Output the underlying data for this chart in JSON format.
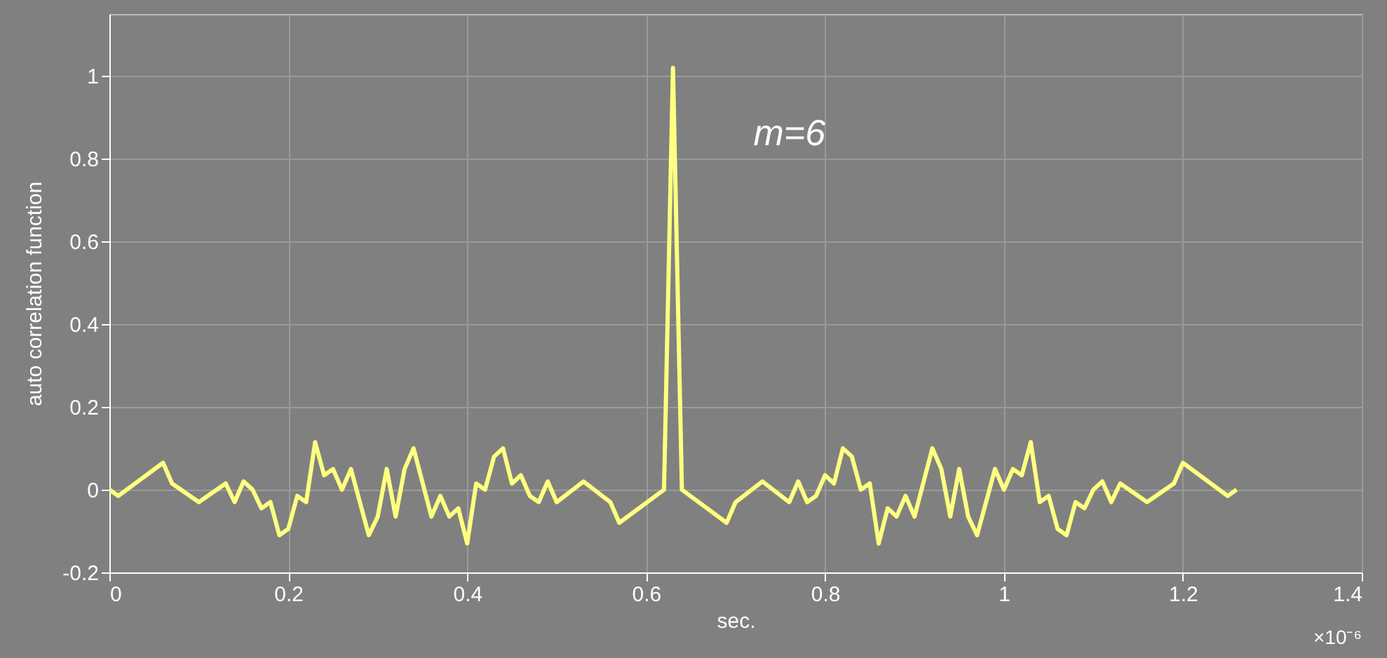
{
  "chart_data": {
    "type": "line",
    "xlabel": "sec.",
    "ylabel": "auto correlation function",
    "x": [
      0,
      0.01,
      0.06,
      0.07,
      0.1,
      0.13,
      0.14,
      0.15,
      0.16,
      0.17,
      0.18,
      0.19,
      0.2,
      0.21,
      0.22,
      0.23,
      0.24,
      0.25,
      0.26,
      0.27,
      0.29,
      0.3,
      0.31,
      0.32,
      0.33,
      0.34,
      0.36,
      0.37,
      0.38,
      0.39,
      0.4,
      0.41,
      0.42,
      0.43,
      0.44,
      0.45,
      0.46,
      0.47,
      0.48,
      0.49,
      0.5,
      0.53,
      0.56,
      0.57,
      0.62,
      0.63,
      0.64,
      0.69,
      0.7,
      0.73,
      0.76,
      0.77,
      0.78,
      0.79,
      0.8,
      0.81,
      0.82,
      0.83,
      0.84,
      0.85,
      0.86,
      0.87,
      0.88,
      0.89,
      0.9,
      0.92,
      0.93,
      0.94,
      0.95,
      0.96,
      0.97,
      0.99,
      1.0,
      1.01,
      1.02,
      1.03,
      1.04,
      1.05,
      1.06,
      1.07,
      1.08,
      1.09,
      1.1,
      1.11,
      1.12,
      1.13,
      1.16,
      1.19,
      1.2,
      1.25,
      1.26
    ],
    "series": [
      {
        "color": "#ffff80",
        "values": [
          0,
          -0.015,
          0.065,
          0.015,
          -0.03,
          0.015,
          -0.03,
          0.02,
          0,
          -0.045,
          -0.03,
          -0.11,
          -0.095,
          -0.015,
          -0.03,
          0.115,
          0.035,
          0.05,
          0,
          0.05,
          -0.11,
          -0.065,
          0.05,
          -0.065,
          0.05,
          0.1,
          -0.065,
          -0.015,
          -0.065,
          -0.045,
          -0.13,
          0.015,
          0,
          0.08,
          0.1,
          0.015,
          0.035,
          -0.015,
          -0.03,
          0.02,
          -0.03,
          0.02,
          -0.03,
          -0.08,
          0,
          1.02,
          0,
          -0.08,
          -0.03,
          0.02,
          -0.03,
          0.02,
          -0.03,
          -0.015,
          0.035,
          0.015,
          0.1,
          0.08,
          0,
          0.015,
          -0.13,
          -0.045,
          -0.065,
          -0.015,
          -0.065,
          0.1,
          0.05,
          -0.065,
          0.05,
          -0.065,
          -0.11,
          0.05,
          0,
          0.05,
          0.035,
          0.115,
          -0.03,
          -0.015,
          -0.095,
          -0.11,
          -0.03,
          -0.045,
          0,
          0.02,
          -0.03,
          0.015,
          -0.03,
          0.015,
          0.065,
          -0.015,
          0
        ]
      }
    ],
    "xlim": [
      0,
      1.4
    ],
    "xticks": [
      0,
      0.2,
      0.4,
      0.6,
      0.8,
      1,
      1.2,
      1.4
    ],
    "ylim": [
      -0.2,
      1.15
    ],
    "yticks": [
      -0.2,
      0,
      0.2,
      0.4,
      0.6,
      0.8,
      1
    ],
    "grid": true,
    "annotations": [
      "m=6",
      "×10⁻⁶"
    ]
  }
}
